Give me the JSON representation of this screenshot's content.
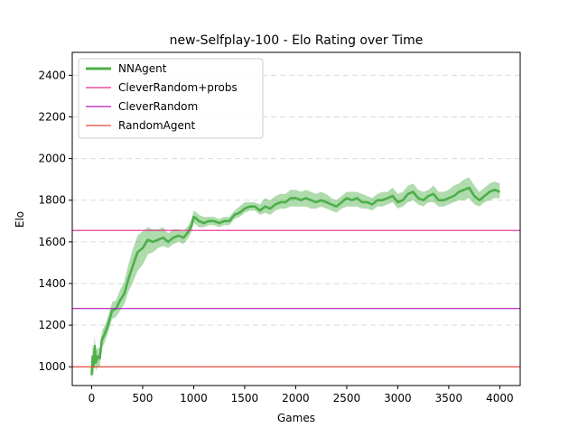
{
  "chart_data": {
    "type": "line",
    "title": "new-Selfplay-100 - Elo Rating over Time",
    "xlabel": "Games",
    "ylabel": "Elo",
    "xlim": [
      -190,
      4200
    ],
    "ylim": [
      910,
      2510
    ],
    "x_ticks": [
      0,
      500,
      1000,
      1500,
      2000,
      2500,
      3000,
      3500,
      4000
    ],
    "y_ticks": [
      1000,
      1200,
      1400,
      1600,
      1800,
      2000,
      2200,
      2400
    ],
    "y_grid": true,
    "legend_position": "upper-left",
    "legend": [
      "NNAgent",
      "CleverRandom+probs",
      "CleverRandom",
      "RandomAgent"
    ],
    "series": [
      {
        "name": "NNAgent",
        "kind": "line-with-band",
        "color": "#4daf4a",
        "x": [
          0,
          10,
          20,
          30,
          40,
          60,
          80,
          100,
          130,
          160,
          200,
          240,
          280,
          320,
          360,
          400,
          450,
          500,
          550,
          600,
          650,
          700,
          750,
          800,
          850,
          900,
          950,
          980,
          1000,
          1030,
          1050,
          1100,
          1150,
          1200,
          1250,
          1300,
          1350,
          1400,
          1450,
          1500,
          1550,
          1600,
          1650,
          1700,
          1750,
          1800,
          1850,
          1900,
          1950,
          2000,
          2050,
          2100,
          2150,
          2200,
          2250,
          2300,
          2350,
          2400,
          2450,
          2500,
          2550,
          2600,
          2650,
          2700,
          2750,
          2800,
          2850,
          2900,
          2950,
          3000,
          3050,
          3100,
          3150,
          3200,
          3250,
          3300,
          3350,
          3400,
          3450,
          3500,
          3550,
          3600,
          3650,
          3700,
          3750,
          3800,
          3850,
          3900,
          3950,
          4000
        ],
        "values": [
          960,
          1050,
          1000,
          1100,
          1020,
          1050,
          1040,
          1130,
          1160,
          1200,
          1270,
          1280,
          1320,
          1350,
          1420,
          1480,
          1550,
          1570,
          1610,
          1600,
          1610,
          1620,
          1600,
          1620,
          1630,
          1620,
          1650,
          1680,
          1720,
          1710,
          1700,
          1690,
          1700,
          1700,
          1690,
          1700,
          1700,
          1730,
          1740,
          1760,
          1770,
          1770,
          1750,
          1770,
          1760,
          1780,
          1790,
          1790,
          1810,
          1810,
          1800,
          1810,
          1800,
          1790,
          1800,
          1790,
          1780,
          1770,
          1790,
          1810,
          1800,
          1810,
          1790,
          1790,
          1780,
          1800,
          1800,
          1810,
          1820,
          1790,
          1800,
          1830,
          1840,
          1810,
          1800,
          1820,
          1830,
          1800,
          1800,
          1810,
          1820,
          1840,
          1850,
          1860,
          1820,
          1800,
          1820,
          1840,
          1850,
          1840
        ],
        "lower": [
          930,
          1000,
          960,
          1040,
          980,
          1000,
          1000,
          1090,
          1120,
          1160,
          1230,
          1240,
          1270,
          1300,
          1360,
          1400,
          1460,
          1490,
          1540,
          1550,
          1570,
          1580,
          1570,
          1590,
          1600,
          1590,
          1620,
          1650,
          1690,
          1680,
          1670,
          1670,
          1680,
          1680,
          1670,
          1680,
          1680,
          1710,
          1720,
          1740,
          1750,
          1750,
          1730,
          1740,
          1730,
          1750,
          1760,
          1760,
          1770,
          1770,
          1770,
          1770,
          1760,
          1760,
          1770,
          1760,
          1750,
          1740,
          1760,
          1770,
          1770,
          1770,
          1760,
          1760,
          1750,
          1770,
          1770,
          1780,
          1790,
          1760,
          1770,
          1790,
          1800,
          1780,
          1770,
          1790,
          1790,
          1770,
          1770,
          1780,
          1790,
          1800,
          1800,
          1810,
          1780,
          1770,
          1790,
          1800,
          1810,
          1810
        ],
        "upper": [
          990,
          1110,
          1060,
          1150,
          1080,
          1090,
          1090,
          1170,
          1200,
          1240,
          1310,
          1320,
          1370,
          1410,
          1490,
          1560,
          1630,
          1650,
          1670,
          1660,
          1660,
          1670,
          1640,
          1660,
          1660,
          1650,
          1680,
          1710,
          1750,
          1740,
          1730,
          1720,
          1720,
          1720,
          1710,
          1720,
          1720,
          1750,
          1770,
          1790,
          1790,
          1790,
          1780,
          1810,
          1800,
          1820,
          1830,
          1830,
          1850,
          1850,
          1840,
          1850,
          1840,
          1830,
          1840,
          1830,
          1810,
          1800,
          1820,
          1840,
          1840,
          1840,
          1830,
          1820,
          1810,
          1830,
          1840,
          1840,
          1860,
          1830,
          1840,
          1870,
          1880,
          1850,
          1840,
          1850,
          1870,
          1840,
          1840,
          1850,
          1870,
          1880,
          1900,
          1910,
          1870,
          1840,
          1860,
          1880,
          1890,
          1880
        ]
      },
      {
        "name": "CleverRandom+probs",
        "kind": "hline",
        "color": "#e7298a",
        "value": 1655
      },
      {
        "name": "CleverRandom",
        "kind": "hline",
        "color": "#b31ab8",
        "value": 1280
      },
      {
        "name": "RandomAgent",
        "kind": "hline",
        "color": "#e8473c",
        "value": 1000
      }
    ]
  }
}
